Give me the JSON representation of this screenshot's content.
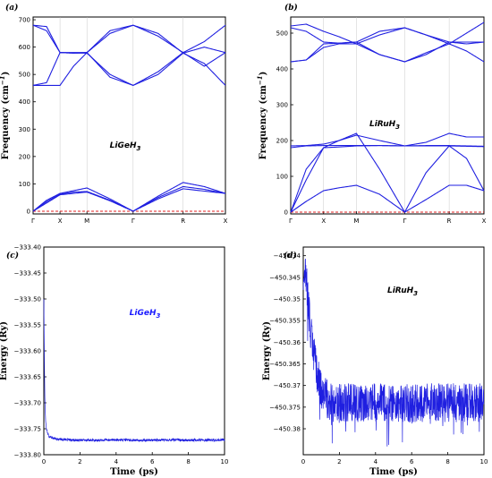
{
  "chart_data": [
    {
      "type": "line",
      "panel": "(a)",
      "label": "LiGeH",
      "label_sub": "3",
      "ylabel": "Frequency (cm",
      "ylabel_sup": "−1",
      "ylabel_end": ")",
      "ylim": [
        -10,
        710
      ],
      "yticks": [
        0,
        100,
        200,
        300,
        400,
        500,
        600,
        700
      ],
      "kpoints": [
        {
          "label": "Γ",
          "pos": 0
        },
        {
          "label": "X",
          "pos": 0.14
        },
        {
          "label": "M",
          "pos": 0.28
        },
        {
          "label": "Γ",
          "pos": 0.52
        },
        {
          "label": "R",
          "pos": 0.78
        },
        {
          "label": "X",
          "pos": 1
        }
      ],
      "zero_line": true,
      "series": [
        {
          "x": [
            0,
            0.07,
            0.14,
            0.21,
            0.28,
            0.4,
            0.52,
            0.65,
            0.78,
            0.89,
            1
          ],
          "values": [
            0,
            40,
            65,
            75,
            85,
            45,
            0,
            55,
            105,
            90,
            65
          ]
        },
        {
          "x": [
            0,
            0.07,
            0.14,
            0.21,
            0.28,
            0.4,
            0.52,
            0.65,
            0.78,
            0.89,
            1
          ],
          "values": [
            0,
            35,
            62,
            70,
            72,
            40,
            0,
            50,
            90,
            80,
            65
          ]
        },
        {
          "x": [
            0,
            0.07,
            0.14,
            0.28,
            0.4,
            0.52,
            0.65,
            0.78,
            1
          ],
          "values": [
            0,
            30,
            60,
            70,
            38,
            0,
            45,
            82,
            65
          ]
        },
        {
          "x": [
            0,
            0.07,
            0.14,
            0.21,
            0.28,
            0.4,
            0.52,
            0.65,
            0.78,
            0.89,
            1
          ],
          "values": [
            680,
            675,
            580,
            580,
            580,
            650,
            680,
            640,
            580,
            620,
            680
          ]
        },
        {
          "x": [
            0,
            0.07,
            0.14,
            0.21,
            0.28,
            0.4,
            0.52,
            0.65,
            0.78,
            0.89,
            1
          ],
          "values": [
            680,
            660,
            580,
            578,
            580,
            660,
            680,
            650,
            578,
            600,
            580
          ]
        },
        {
          "x": [
            0,
            0.07,
            0.14,
            0.21,
            0.28,
            0.4,
            0.52,
            0.65,
            0.78,
            0.89,
            1
          ],
          "values": [
            460,
            470,
            580,
            578,
            578,
            500,
            460,
            500,
            578,
            540,
            460
          ]
        },
        {
          "x": [
            0,
            0.07,
            0.14,
            0.21,
            0.28,
            0.4,
            0.52,
            0.65,
            0.78,
            0.89,
            1
          ],
          "values": [
            460,
            460,
            460,
            530,
            580,
            490,
            460,
            510,
            580,
            530,
            580
          ]
        }
      ]
    },
    {
      "type": "line",
      "panel": "(b)",
      "label": "LiRuH",
      "label_sub": "3",
      "ylabel": "Frequency (cm",
      "ylabel_sup": "−1",
      "ylabel_end": ")",
      "ylim": [
        -5,
        545
      ],
      "yticks": [
        0,
        100,
        200,
        300,
        400,
        500
      ],
      "kpoints": [
        {
          "label": "Γ",
          "pos": 0
        },
        {
          "label": "X",
          "pos": 0.17
        },
        {
          "label": "M",
          "pos": 0.34
        },
        {
          "label": "Γ",
          "pos": 0.59
        },
        {
          "label": "R",
          "pos": 0.82
        },
        {
          "label": "X",
          "pos": 1
        }
      ],
      "zero_line": true,
      "series": [
        {
          "x": [
            0,
            0.08,
            0.17,
            0.25,
            0.34,
            0.46,
            0.59,
            0.7,
            0.82,
            0.91,
            1
          ],
          "values": [
            0,
            30,
            60,
            68,
            75,
            50,
            0,
            35,
            75,
            75,
            60
          ]
        },
        {
          "x": [
            0,
            0.08,
            0.17,
            0.25,
            0.34,
            0.46,
            0.59,
            0.7,
            0.82,
            0.91,
            1
          ],
          "values": [
            0,
            90,
            180,
            200,
            220,
            120,
            0,
            110,
            185,
            150,
            60
          ]
        },
        {
          "x": [
            0,
            0.08,
            0.17,
            0.25,
            0.34,
            0.46,
            0.59,
            0.7,
            0.82,
            0.91,
            1
          ],
          "values": [
            0,
            120,
            180,
            182,
            185,
            186,
            185,
            185,
            185,
            184,
            183
          ]
        },
        {
          "x": [
            0,
            0.08,
            0.17,
            0.25,
            0.34,
            0.46,
            0.59,
            0.7,
            0.82,
            0.91,
            1
          ],
          "values": [
            185,
            186,
            190,
            200,
            215,
            200,
            185,
            195,
            220,
            210,
            210
          ]
        },
        {
          "x": [
            0,
            0.08,
            0.17,
            0.25,
            0.34,
            0.46,
            0.59,
            0.7,
            0.82,
            0.91,
            1
          ],
          "values": [
            180,
            185,
            186,
            186,
            186,
            186,
            185,
            186,
            186,
            185,
            184
          ]
        },
        {
          "x": [
            0,
            0.08,
            0.17,
            0.25,
            0.34,
            0.46,
            0.59,
            0.7,
            0.82,
            0.91,
            1
          ],
          "values": [
            520,
            525,
            505,
            490,
            470,
            495,
            515,
            495,
            470,
            500,
            530
          ]
        },
        {
          "x": [
            0,
            0.08,
            0.17,
            0.25,
            0.34,
            0.46,
            0.59,
            0.7,
            0.82,
            0.91,
            1
          ],
          "values": [
            515,
            505,
            475,
            472,
            475,
            505,
            515,
            495,
            475,
            475,
            475
          ]
        },
        {
          "x": [
            0,
            0.08,
            0.17,
            0.25,
            0.34,
            0.46,
            0.59,
            0.7,
            0.82,
            0.91,
            1
          ],
          "values": [
            420,
            425,
            470,
            472,
            475,
            440,
            420,
            440,
            475,
            470,
            475
          ]
        },
        {
          "x": [
            0,
            0.08,
            0.17,
            0.25,
            0.34,
            0.46,
            0.59,
            0.7,
            0.82,
            0.91,
            1
          ],
          "values": [
            420,
            425,
            460,
            470,
            470,
            440,
            420,
            445,
            470,
            450,
            420
          ]
        }
      ]
    },
    {
      "type": "line",
      "panel": "(c)",
      "label": "LiGeH",
      "label_sub": "3",
      "xlabel": "Time (ps)",
      "ylabel": "Energy (Ry)",
      "xlim": [
        0,
        10
      ],
      "ylim": [
        -333.8,
        -333.4
      ],
      "xticks": [
        0,
        2,
        4,
        6,
        8,
        10
      ],
      "yticks": [
        -333.8,
        -333.75,
        -333.7,
        -333.65,
        -333.6,
        -333.55,
        -333.5,
        -333.45,
        -333.4
      ],
      "ytick_labels": [
        "−333.80",
        "−333.75",
        "−333.70",
        "−333.65",
        "−333.60",
        "−333.55",
        "−333.50",
        "−333.45",
        "−333.40"
      ],
      "xtick_labels": [
        "0",
        "2",
        "4",
        "6",
        "8",
        "10"
      ],
      "series": [
        {
          "x": [
            0,
            0.03,
            0.06,
            0.1,
            0.15,
            0.2,
            0.3,
            0.5,
            0.8,
            1.2,
            2,
            3,
            4,
            5,
            6,
            7,
            8,
            9,
            10
          ],
          "values": [
            -333.5,
            -333.62,
            -333.7,
            -333.735,
            -333.75,
            -333.758,
            -333.765,
            -333.768,
            -333.77,
            -333.771,
            -333.772,
            -333.772,
            -333.771,
            -333.772,
            -333.772,
            -333.771,
            -333.772,
            -333.772,
            -333.771
          ],
          "noise": 0.0025
        }
      ]
    },
    {
      "type": "line",
      "panel": "(d)",
      "label": "LiRuH",
      "label_sub": "3",
      "xlabel": "Time (ps)",
      "ylabel": "Energy (Ry)",
      "xlim": [
        0,
        10
      ],
      "ylim": [
        -450.386,
        -450.338
      ],
      "xticks": [
        0,
        2,
        4,
        6,
        8,
        10
      ],
      "yticks": [
        -450.38,
        -450.375,
        -450.37,
        -450.365,
        -450.36,
        -450.355,
        -450.35,
        -450.345,
        -450.34
      ],
      "ytick_labels": [
        "−450.38",
        "−450.375",
        "−450.37",
        "−450.365",
        "−450.36",
        "−450.355",
        "−450.35",
        "−450.345",
        "−450.34"
      ],
      "xtick_labels": [
        "0",
        "2",
        "4",
        "6",
        "8",
        "10"
      ],
      "series": [
        {
          "x": [
            0,
            0.1,
            0.2,
            0.3,
            0.4,
            0.5,
            0.6,
            0.8,
            1.0,
            1.3,
            1.6,
            2,
            3,
            4,
            5,
            6,
            7,
            8,
            9,
            10
          ],
          "values": [
            -450.347,
            -450.343,
            -450.347,
            -450.352,
            -450.357,
            -450.36,
            -450.363,
            -450.368,
            -450.371,
            -450.373,
            -450.374,
            -450.374,
            -450.374,
            -450.374,
            -450.374,
            -450.374,
            -450.374,
            -450.374,
            -450.374,
            -450.374
          ],
          "noise": 0.0045
        }
      ]
    }
  ]
}
